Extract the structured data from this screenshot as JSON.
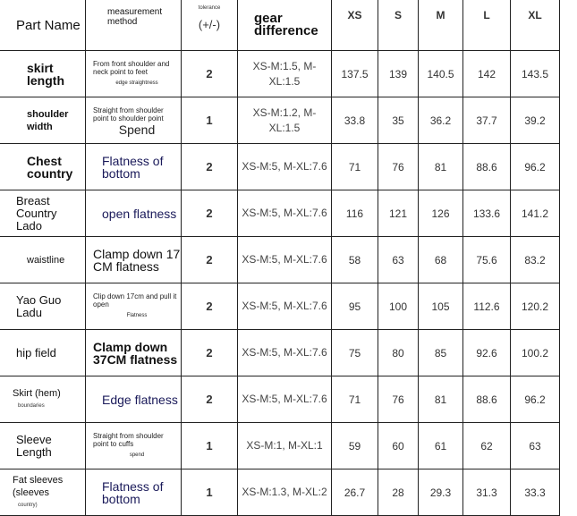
{
  "header": {
    "part_name": "Part Name",
    "method": "measurement method",
    "tolerance_small": "tolerance",
    "tolerance": "(+/-)",
    "gear": "gear difference",
    "sizes": [
      "XS",
      "S",
      "M",
      "L",
      "XL"
    ]
  },
  "rows": [
    {
      "name": "skirt length",
      "method": "From front shoulder and neck point to feet",
      "method_note": "edge straightness",
      "tol": "2",
      "gear": "XS-M:1.5, M-XL:1.5",
      "values": [
        "137.5",
        "139",
        "140.5",
        "142",
        "143.5"
      ]
    },
    {
      "name": "shoulder width",
      "method": "Straight from shoulder point to shoulder point",
      "method_note": "Spend",
      "tol": "1",
      "gear": "XS-M:1.2, M-XL:1.5",
      "values": [
        "33.8",
        "35",
        "36.2",
        "37.7",
        "39.2"
      ]
    },
    {
      "name": "Chest country",
      "method": "Flatness of bottom",
      "method_note": "",
      "tol": "2",
      "gear": "XS-M:5, M-XL:7.6",
      "values": [
        "71",
        "76",
        "81",
        "88.6",
        "96.2"
      ]
    },
    {
      "name": "Breast Country Lado",
      "method": "open flatness",
      "method_note": "",
      "tol": "2",
      "gear": "XS-M:5, M-XL:7.6",
      "values": [
        "116",
        "121",
        "126",
        "133.6",
        "141.2"
      ]
    },
    {
      "name": "waistline",
      "method": "Clamp down 17 CM flatness",
      "method_note": "",
      "tol": "2",
      "gear": "XS-M:5, M-XL:7.6",
      "values": [
        "58",
        "63",
        "68",
        "75.6",
        "83.2"
      ]
    },
    {
      "name": "Yao Guo Ladu",
      "method": "Clip down 17cm and pull it open",
      "method_note": "Flatness",
      "tol": "2",
      "gear": "XS-M:5, M-XL:7.6",
      "values": [
        "95",
        "100",
        "105",
        "112.6",
        "120.2"
      ]
    },
    {
      "name": "hip field",
      "method": "Clamp down 37CM flatness",
      "method_note": "",
      "tol": "2",
      "gear": "XS-M:5, M-XL:7.6",
      "values": [
        "75",
        "80",
        "85",
        "92.6",
        "100.2"
      ]
    },
    {
      "name": "Skirt (hem)",
      "name_note": "boundaries",
      "method": "Edge flatness",
      "method_note": "",
      "tol": "2",
      "gear": "XS-M:5, M-XL:7.6",
      "values": [
        "71",
        "76",
        "81",
        "88.6",
        "96.2"
      ]
    },
    {
      "name": "Sleeve Length",
      "method": "Straight from shoulder point to cuffs",
      "method_note": "spend",
      "tol": "1",
      "gear": "XS-M:1, M-XL:1",
      "values": [
        "59",
        "60",
        "61",
        "62",
        "63"
      ]
    },
    {
      "name": "Fat sleeves (sleeves",
      "name_note": "country)",
      "method": "Flatness of bottom",
      "method_note": "",
      "tol": "1",
      "gear": "XS-M:1.3, M-XL:2",
      "values": [
        "26.7",
        "28",
        "29.3",
        "31.3",
        "33.3"
      ]
    }
  ]
}
